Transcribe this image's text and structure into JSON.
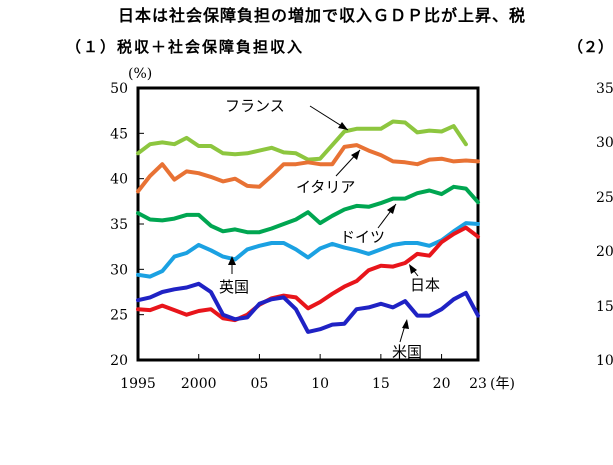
{
  "header": {
    "title": "日本は社会保障負担の増加で収入ＧＤＰ比が上昇、税",
    "left_subtitle": "（１）税収＋社会保障負担収入",
    "right_subtitle": "（２）"
  },
  "colors": {
    "フランス": "#8dc63f",
    "イタリア": "#e87234",
    "ドイツ": "#00a651",
    "英国": "#1ba1e2",
    "日本": "#e8151b",
    "米国": "#1f22c4"
  },
  "chart_data": {
    "type": "line",
    "ylabel": "(%)",
    "xunit": "(年)",
    "ylim": [
      20,
      50
    ],
    "xlim": [
      1995,
      2023
    ],
    "yticks": [
      "20",
      "25",
      "30",
      "35",
      "40",
      "45",
      "50"
    ],
    "xticks": [
      "1995",
      "2000",
      "05",
      "10",
      "15",
      "20",
      "23"
    ],
    "right_axis_ticks": [
      "35",
      "30",
      "25",
      "20",
      "15",
      "10"
    ],
    "grid": false,
    "x": [
      1995,
      1996,
      1997,
      1998,
      1999,
      2000,
      2001,
      2002,
      2003,
      2004,
      2005,
      2006,
      2007,
      2008,
      2009,
      2010,
      2011,
      2012,
      2013,
      2014,
      2015,
      2016,
      2017,
      2018,
      2019,
      2020,
      2021,
      2022,
      2023
    ],
    "series": [
      {
        "name": "フランス",
        "values": [
          42.8,
          43.8,
          44.0,
          43.8,
          44.5,
          43.6,
          43.6,
          42.8,
          42.7,
          42.8,
          43.1,
          43.4,
          42.9,
          42.8,
          42.1,
          42.2,
          43.7,
          45.2,
          45.5,
          45.5,
          45.5,
          46.3,
          46.2,
          45.1,
          45.3,
          45.2,
          45.8,
          43.8,
          null
        ]
      },
      {
        "name": "イタリア",
        "values": [
          38.6,
          40.3,
          41.6,
          39.9,
          40.8,
          40.6,
          40.2,
          39.7,
          40.0,
          39.2,
          39.1,
          40.3,
          41.6,
          41.6,
          41.8,
          41.6,
          41.6,
          43.5,
          43.7,
          43.1,
          42.6,
          41.9,
          41.8,
          41.6,
          42.1,
          42.2,
          41.9,
          42.0,
          41.9
        ]
      },
      {
        "name": "ドイツ",
        "values": [
          36.2,
          35.5,
          35.4,
          35.6,
          36.0,
          36.0,
          34.8,
          34.2,
          34.4,
          34.1,
          34.1,
          34.5,
          35.0,
          35.5,
          36.3,
          35.1,
          35.9,
          36.6,
          37.0,
          36.9,
          37.3,
          37.8,
          37.8,
          38.4,
          38.7,
          38.3,
          39.1,
          38.9,
          37.4
        ]
      },
      {
        "name": "英国",
        "values": [
          29.4,
          29.2,
          29.8,
          31.4,
          31.8,
          32.7,
          32.1,
          31.4,
          31.1,
          32.2,
          32.6,
          32.9,
          32.9,
          32.2,
          31.3,
          32.3,
          32.8,
          32.4,
          32.1,
          31.7,
          32.2,
          32.7,
          32.9,
          32.9,
          32.6,
          33.2,
          34.2,
          35.1,
          35.0
        ]
      },
      {
        "name": "日本",
        "values": [
          25.6,
          25.5,
          26.0,
          25.5,
          25.0,
          25.4,
          25.6,
          24.6,
          24.4,
          25.0,
          26.1,
          26.8,
          27.1,
          26.9,
          25.7,
          26.4,
          27.3,
          28.1,
          28.7,
          29.9,
          30.4,
          30.3,
          30.7,
          31.7,
          31.5,
          33.0,
          33.9,
          34.6,
          33.6
        ]
      },
      {
        "name": "米国",
        "values": [
          26.6,
          26.9,
          27.5,
          27.8,
          28.0,
          28.4,
          27.5,
          25.0,
          24.5,
          24.7,
          26.2,
          26.7,
          26.9,
          25.6,
          23.1,
          23.4,
          23.9,
          24.0,
          25.6,
          25.8,
          26.2,
          25.8,
          26.5,
          24.9,
          24.9,
          25.6,
          26.7,
          27.4,
          24.9
        ]
      }
    ],
    "annotations": [
      "フランス",
      "イタリア",
      "ドイツ",
      "英国",
      "日本",
      "米国"
    ]
  }
}
